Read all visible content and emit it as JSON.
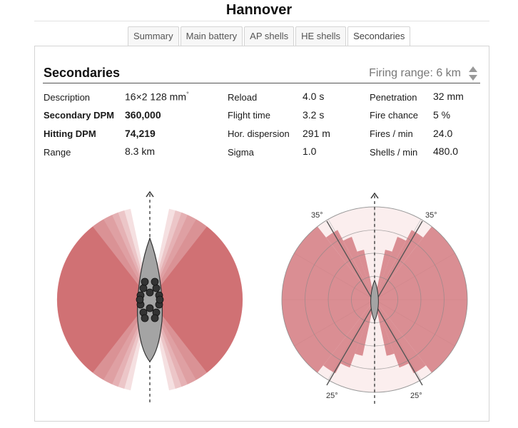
{
  "ship_name": "Hannover",
  "tabs": [
    {
      "label": "Summary",
      "active": false
    },
    {
      "label": "Main battery",
      "active": false
    },
    {
      "label": "AP shells",
      "active": false
    },
    {
      "label": "HE shells",
      "active": false
    },
    {
      "label": "Secondaries",
      "active": true
    }
  ],
  "section": {
    "title": "Secondaries",
    "firing_range_label": "Firing range: 6 km"
  },
  "stats": {
    "description_label": "Description",
    "description_value": "16×2 128 mm",
    "description_marker": "*",
    "secondary_dpm_label": "Secondary DPM",
    "secondary_dpm_value": "360,000",
    "hitting_dpm_label": "Hitting DPM",
    "hitting_dpm_value": "74,219",
    "range_label": "Range",
    "range_value": "8.3 km",
    "reload_label": "Reload",
    "reload_value": "4.0 s",
    "flight_time_label": "Flight time",
    "flight_time_value": "3.2 s",
    "hor_dispersion_label": "Hor. dispersion",
    "hor_dispersion_value": "291 m",
    "sigma_label": "Sigma",
    "sigma_value": "1.0",
    "penetration_label": "Penetration",
    "penetration_value": "32 mm",
    "fire_chance_label": "Fire chance",
    "fire_chance_value": "5 %",
    "fires_per_min_label": "Fires / min",
    "fires_per_min_value": "24.0",
    "shells_per_min_label": "Shells / min",
    "shells_per_min_value": "480.0"
  },
  "polar": {
    "angle_labels": {
      "top_left": "35°",
      "top_right": "35°",
      "bottom_left": "25°",
      "bottom_right": "25°"
    }
  },
  "colors": {
    "arc_fill": "#c9555a",
    "polar_fill": "#d47d82",
    "hull": "#9e9e9e"
  }
}
